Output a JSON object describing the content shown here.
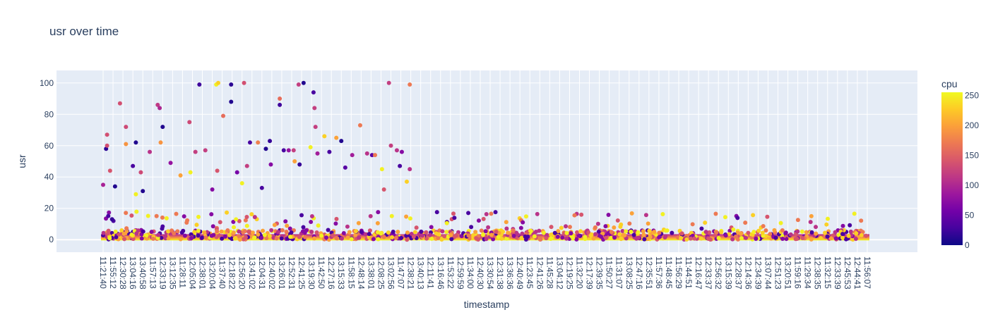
{
  "chart_data": {
    "type": "scatter",
    "title": "usr over time",
    "xlabel": "timestamp",
    "ylabel": "usr",
    "ylim": [
      -8,
      108
    ],
    "yticks": [
      0,
      20,
      40,
      60,
      80,
      100
    ],
    "grid": true,
    "plot_background": "#e5ecf6",
    "colorbar": {
      "title": "cpu",
      "range": [
        0,
        255
      ],
      "ticks": [
        0,
        50,
        100,
        150,
        200,
        250
      ],
      "colorscale": [
        "#0d0887",
        "#46039f",
        "#7201a8",
        "#9c179e",
        "#bd3786",
        "#d8576b",
        "#ed7953",
        "#fb9f3a",
        "#fdca26",
        "#f0f921"
      ]
    },
    "x_tick_labels": [
      "11:21:40",
      "11:55:12",
      "12:30:28",
      "13:04:16",
      "13:40:58",
      "11:57:13",
      "12:33:19",
      "13:12:35",
      "11:28:11",
      "12:05:04",
      "12:38:01",
      "13:20:04",
      "11:37:40",
      "12:18:22",
      "12:56:20",
      "13:41:02",
      "12:04:31",
      "12:40:02",
      "13:26:01",
      "12:52:31",
      "12:41:25",
      "13:19:30",
      "11:42:50",
      "12:27:16",
      "13:15:33",
      "11:58:15",
      "12:48:14",
      "13:38:01",
      "12:08:25",
      "13:02:56",
      "11:47:07",
      "12:38:21",
      "13:40:13",
      "12:11:41",
      "13:16:46",
      "11:53:22",
      "12:59:59",
      "11:34:00",
      "12:40:30",
      "13:30:54",
      "12:31:38",
      "13:36:36",
      "12:40:49",
      "11:23:45",
      "12:41:26",
      "11:45:28",
      "13:04:12",
      "12:19:25",
      "11:32:20",
      "12:17:39",
      "12:39:35",
      "11:50:27",
      "11:31:07",
      "13:08:25",
      "12:47:16",
      "12:35:51",
      "11:57:36",
      "11:48:45",
      "11:56:29",
      "11:44:51",
      "12:16:47",
      "12:33:37",
      "12:56:32",
      "13:15:39",
      "12:28:37",
      "12:14:36",
      "12:34:39",
      "13:07:44",
      "12:51:23",
      "13:20:51",
      "11:59:16",
      "11:29:34",
      "12:38:35",
      "11:32:15",
      "12:33:39",
      "12:45:53",
      "12:44:41",
      "11:56:07"
    ],
    "highlight_points": [
      {
        "x": 0,
        "y": 35,
        "cpu": 95
      },
      {
        "x": 0.3,
        "y": 58,
        "cpu": 15
      },
      {
        "x": 0.4,
        "y": 60,
        "cpu": 135
      },
      {
        "x": 0.4,
        "y": 67,
        "cpu": 135
      },
      {
        "x": 0.7,
        "y": 44,
        "cpu": 140
      },
      {
        "x": 0.9,
        "y": 13,
        "cpu": 20
      },
      {
        "x": 1.2,
        "y": 34,
        "cpu": 10
      },
      {
        "x": 1.7,
        "y": 87,
        "cpu": 135
      },
      {
        "x": 2.3,
        "y": 72,
        "cpu": 130
      },
      {
        "x": 2.3,
        "y": 61,
        "cpu": 190
      },
      {
        "x": 3.0,
        "y": 47,
        "cpu": 30
      },
      {
        "x": 3.3,
        "y": 62,
        "cpu": 10
      },
      {
        "x": 3.3,
        "y": 29,
        "cpu": 250
      },
      {
        "x": 3.8,
        "y": 43,
        "cpu": 130
      },
      {
        "x": 4.0,
        "y": 31,
        "cpu": 10
      },
      {
        "x": 4.7,
        "y": 56,
        "cpu": 110
      },
      {
        "x": 5.5,
        "y": 86,
        "cpu": 115
      },
      {
        "x": 5.7,
        "y": 84,
        "cpu": 100
      },
      {
        "x": 5.8,
        "y": 62,
        "cpu": 190
      },
      {
        "x": 6.0,
        "y": 72,
        "cpu": 10
      },
      {
        "x": 6.8,
        "y": 49,
        "cpu": 80
      },
      {
        "x": 7.8,
        "y": 41,
        "cpu": 200
      },
      {
        "x": 8.7,
        "y": 75,
        "cpu": 130
      },
      {
        "x": 8.8,
        "y": 43,
        "cpu": 250
      },
      {
        "x": 9.3,
        "y": 56,
        "cpu": 120
      },
      {
        "x": 9.7,
        "y": 99,
        "cpu": 25
      },
      {
        "x": 10.3,
        "y": 57,
        "cpu": 120
      },
      {
        "x": 11.0,
        "y": 32,
        "cpu": 70
      },
      {
        "x": 11.4,
        "y": 99,
        "cpu": 250
      },
      {
        "x": 11.5,
        "y": 44,
        "cpu": 140
      },
      {
        "x": 11.6,
        "y": 100,
        "cpu": 230
      },
      {
        "x": 12.1,
        "y": 79,
        "cpu": 160
      },
      {
        "x": 12.9,
        "y": 99,
        "cpu": 15
      },
      {
        "x": 12.9,
        "y": 88,
        "cpu": 10
      },
      {
        "x": 13.5,
        "y": 43,
        "cpu": 60
      },
      {
        "x": 14.0,
        "y": 36,
        "cpu": 250
      },
      {
        "x": 14.2,
        "y": 100,
        "cpu": 135
      },
      {
        "x": 14.5,
        "y": 47,
        "cpu": 120
      },
      {
        "x": 14.8,
        "y": 62,
        "cpu": 30
      },
      {
        "x": 15.6,
        "y": 62,
        "cpu": 175
      },
      {
        "x": 16.0,
        "y": 33,
        "cpu": 30
      },
      {
        "x": 16.4,
        "y": 58,
        "cpu": 10
      },
      {
        "x": 16.8,
        "y": 63,
        "cpu": 20
      },
      {
        "x": 16.9,
        "y": 48,
        "cpu": 70
      },
      {
        "x": 17.8,
        "y": 86,
        "cpu": 25
      },
      {
        "x": 17.8,
        "y": 90,
        "cpu": 160
      },
      {
        "x": 18.2,
        "y": 57,
        "cpu": 30
      },
      {
        "x": 18.7,
        "y": 57,
        "cpu": 80
      },
      {
        "x": 19.2,
        "y": 57,
        "cpu": 120
      },
      {
        "x": 19.3,
        "y": 50,
        "cpu": 200
      },
      {
        "x": 19.7,
        "y": 99,
        "cpu": 120
      },
      {
        "x": 19.8,
        "y": 48,
        "cpu": 20
      },
      {
        "x": 20.2,
        "y": 100,
        "cpu": 10
      },
      {
        "x": 21.2,
        "y": 94,
        "cpu": 30
      },
      {
        "x": 21.3,
        "y": 84,
        "cpu": 120
      },
      {
        "x": 21.4,
        "y": 72,
        "cpu": 120
      },
      {
        "x": 20.9,
        "y": 59,
        "cpu": 250
      },
      {
        "x": 21.6,
        "y": 55,
        "cpu": 90
      },
      {
        "x": 22.3,
        "y": 66,
        "cpu": 230
      },
      {
        "x": 22.8,
        "y": 56,
        "cpu": 30
      },
      {
        "x": 23.5,
        "y": 65,
        "cpu": 200
      },
      {
        "x": 24.0,
        "y": 63,
        "cpu": 10
      },
      {
        "x": 24.4,
        "y": 46,
        "cpu": 40
      },
      {
        "x": 25.1,
        "y": 54,
        "cpu": 90
      },
      {
        "x": 25.9,
        "y": 73,
        "cpu": 170
      },
      {
        "x": 26.6,
        "y": 55,
        "cpu": 110
      },
      {
        "x": 27.1,
        "y": 54,
        "cpu": 40
      },
      {
        "x": 27.4,
        "y": 54,
        "cpu": 170
      },
      {
        "x": 28.1,
        "y": 45,
        "cpu": 250
      },
      {
        "x": 28.3,
        "y": 32,
        "cpu": 140
      },
      {
        "x": 28.8,
        "y": 100,
        "cpu": 120
      },
      {
        "x": 29.0,
        "y": 60,
        "cpu": 120
      },
      {
        "x": 29.6,
        "y": 57,
        "cpu": 110
      },
      {
        "x": 29.9,
        "y": 47,
        "cpu": 30
      },
      {
        "x": 30.1,
        "y": 56,
        "cpu": 70
      },
      {
        "x": 30.6,
        "y": 37,
        "cpu": 230
      },
      {
        "x": 30.9,
        "y": 99,
        "cpu": 170
      },
      {
        "x": 30.9,
        "y": 45,
        "cpu": 110
      }
    ]
  }
}
